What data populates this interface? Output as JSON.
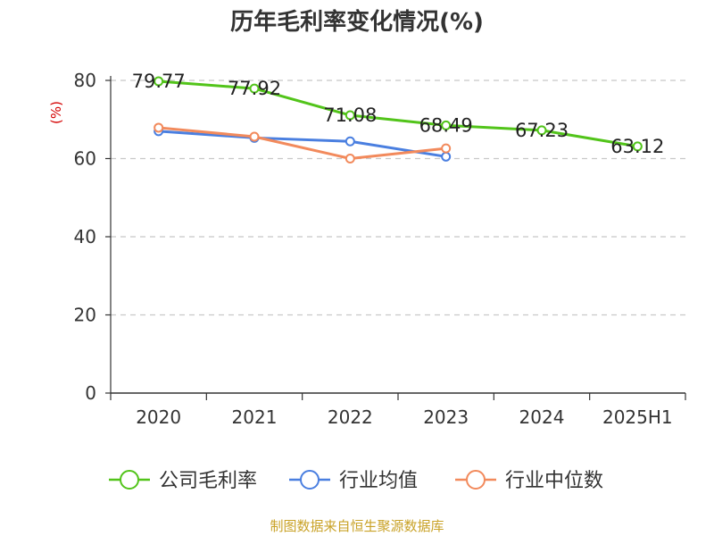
{
  "chart_data": {
    "type": "line",
    "title": "历年毛利率变化情况(%)",
    "ylabel": "(%)",
    "xlabel": "",
    "categories": [
      "2020",
      "2021",
      "2022",
      "2023",
      "2024",
      "2025H1"
    ],
    "ylim": [
      0,
      80
    ],
    "yticks": [
      0,
      20,
      40,
      60,
      80
    ],
    "grid": true,
    "legend_position": "bottom",
    "series": [
      {
        "name": "公司毛利率",
        "color": "#52c41a",
        "values": [
          79.77,
          77.92,
          71.08,
          68.49,
          67.23,
          63.12
        ],
        "labels": [
          "79.77",
          "77.92",
          "71.08",
          "68.49",
          "67.23",
          "63.12"
        ]
      },
      {
        "name": "行业均值",
        "color": "#4a7fe0",
        "values": [
          67.0,
          65.3,
          64.4,
          60.5,
          null,
          null
        ],
        "labels": []
      },
      {
        "name": "行业中位数",
        "color": "#f28a5c",
        "values": [
          67.9,
          65.6,
          60.0,
          62.6,
          null,
          null
        ],
        "labels": []
      }
    ]
  },
  "source": "制图数据来自恒生聚源数据库"
}
